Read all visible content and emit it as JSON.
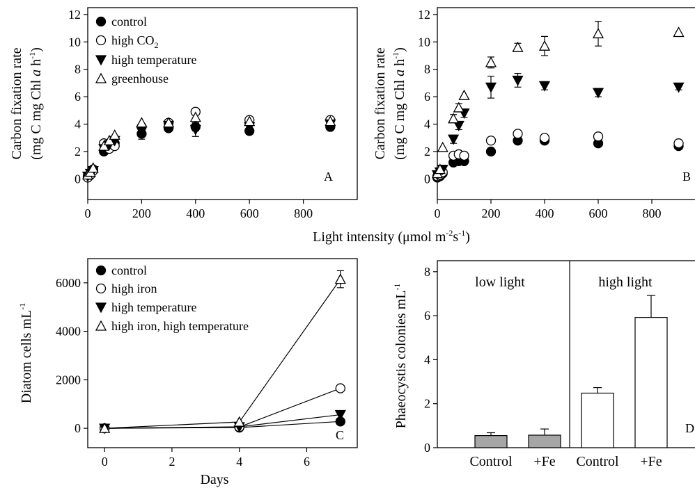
{
  "shared": {
    "xlabel_main": "Light intensity (μmol m",
    "xlabel_sup1": "-2",
    "xlabel_mid": "s",
    "xlabel_sup2": "-1",
    "xlabel_end": ")",
    "ylabel_line1": "Carbon fixation rate",
    "ylabel_line2_pre": "(mg C mg Chl ",
    "ylabel_line2_ital": "a",
    "ylabel_line2_post": "  h",
    "ylabel_line2_sup": "-1",
    "ylabel_line2_close": ")",
    "legend_co2_pre": "high CO",
    "legend_co2_sub": "2"
  },
  "chart_data": [
    {
      "id": "A",
      "type": "scatter",
      "panel_letter": "A",
      "xlim": [
        0,
        1000
      ],
      "ylim": [
        -1.5,
        12.5
      ],
      "xticks": [
        "0",
        "200",
        "400",
        "600",
        "800"
      ],
      "yticks": [
        "0",
        "2",
        "4",
        "6",
        "8",
        "10",
        "12"
      ],
      "legend_placement": "top-left",
      "legend": [
        "control",
        "high CO2",
        "high temperature",
        "greenhouse"
      ],
      "series": [
        {
          "name": "control",
          "marker": "filled-circle",
          "x": [
            0,
            10,
            20,
            60,
            80,
            100,
            200,
            300,
            400,
            600,
            900
          ],
          "y": [
            0.2,
            0.4,
            0.7,
            2.0,
            2.3,
            2.6,
            3.3,
            3.7,
            3.8,
            3.5,
            3.8
          ],
          "err": [
            0,
            0,
            0,
            0,
            0,
            0,
            0.4,
            0.2,
            0.3,
            0.1,
            0.1
          ]
        },
        {
          "name": "high CO2",
          "marker": "open-circle",
          "x": [
            0,
            10,
            20,
            60,
            80,
            100,
            200,
            300,
            400,
            600,
            900
          ],
          "y": [
            0.1,
            0.3,
            0.6,
            2.6,
            2.2,
            2.4,
            3.8,
            4.1,
            4.9,
            4.3,
            4.3
          ],
          "err": [
            0,
            0,
            0,
            0,
            0,
            0,
            0,
            0,
            0,
            0,
            0
          ]
        },
        {
          "name": "high temperature",
          "marker": "filled-triangle-down",
          "x": [
            0,
            10,
            20,
            60,
            80,
            100,
            200,
            300,
            400,
            600,
            900
          ],
          "y": [
            0.2,
            0.4,
            0.6,
            2.2,
            2.5,
            2.8,
            3.5,
            3.9,
            3.6,
            3.8,
            4.0
          ],
          "err": [
            0,
            0,
            0,
            0,
            0,
            0,
            0,
            0,
            0.5,
            0,
            0
          ]
        },
        {
          "name": "greenhouse",
          "marker": "open-triangle-up",
          "x": [
            0,
            10,
            20,
            60,
            80,
            100,
            200,
            300,
            400,
            600,
            900
          ],
          "y": [
            0.3,
            0.5,
            0.8,
            2.4,
            2.8,
            3.2,
            4.1,
            4.1,
            4.5,
            4.2,
            4.2
          ],
          "err": [
            0,
            0,
            0,
            0,
            0,
            0,
            0,
            0,
            0,
            0,
            0
          ]
        }
      ]
    },
    {
      "id": "B",
      "type": "scatter",
      "panel_letter": "B",
      "xlim": [
        0,
        1000
      ],
      "ylim": [
        -1.5,
        12.5
      ],
      "xticks": [
        "0",
        "200",
        "400",
        "600",
        "800"
      ],
      "yticks": [
        "0",
        "2",
        "4",
        "6",
        "8",
        "10",
        "12"
      ],
      "series": [
        {
          "name": "control",
          "marker": "filled-circle",
          "x": [
            0,
            10,
            20,
            60,
            80,
            100,
            200,
            300,
            400,
            600,
            900
          ],
          "y": [
            0.1,
            0.2,
            0.4,
            1.2,
            1.3,
            1.3,
            2.0,
            2.8,
            2.8,
            2.6,
            2.4
          ],
          "err": [
            0,
            0,
            0,
            0,
            0,
            0,
            0,
            0,
            0,
            0,
            0
          ]
        },
        {
          "name": "high CO2",
          "marker": "open-circle",
          "x": [
            0,
            10,
            20,
            60,
            80,
            100,
            200,
            300,
            400,
            600,
            900
          ],
          "y": [
            0.2,
            0.3,
            0.5,
            1.7,
            1.8,
            1.7,
            2.8,
            3.3,
            3.0,
            3.1,
            2.6
          ],
          "err": [
            0,
            0,
            0,
            0,
            0,
            0,
            0,
            0,
            0,
            0,
            0
          ]
        },
        {
          "name": "high temperature",
          "marker": "filled-triangle-down",
          "x": [
            0,
            10,
            20,
            60,
            80,
            100,
            200,
            300,
            400,
            600,
            900
          ],
          "y": [
            0.3,
            0.5,
            0.7,
            2.9,
            3.9,
            4.8,
            6.7,
            7.2,
            6.8,
            6.3,
            6.7
          ],
          "err": [
            0,
            0,
            0,
            0.3,
            0.3,
            0.3,
            0.8,
            0.5,
            0.3,
            0.3,
            0.2
          ]
        },
        {
          "name": "greenhouse",
          "marker": "open-triangle-up",
          "x": [
            0,
            10,
            20,
            60,
            80,
            100,
            200,
            300,
            400,
            600,
            900
          ],
          "y": [
            0.4,
            0.7,
            2.3,
            4.4,
            5.2,
            6.1,
            8.5,
            9.6,
            9.7,
            10.6,
            10.7
          ],
          "err": [
            0,
            0,
            0,
            0.3,
            0.3,
            0,
            0.4,
            0.3,
            0.7,
            0.9,
            0
          ]
        }
      ]
    },
    {
      "id": "C",
      "type": "line",
      "panel_letter": "C",
      "xlabel": "Days",
      "ylabel": "Diatom cells mL",
      "ylabel_sup": "-1",
      "xlim": [
        -0.5,
        7.5
      ],
      "ylim": [
        -800,
        7000
      ],
      "xticks": [
        "0",
        "2",
        "4",
        "6"
      ],
      "yticks": [
        "0",
        "2000",
        "4000",
        "6000"
      ],
      "legend_placement": "top-left",
      "legend": [
        "control",
        "high iron",
        "high temperature",
        "high iron, high temperature"
      ],
      "series": [
        {
          "name": "control",
          "marker": "filled-circle",
          "x": [
            0,
            4,
            7
          ],
          "y": [
            0,
            30,
            280
          ],
          "err": [
            0,
            0,
            0
          ]
        },
        {
          "name": "high iron",
          "marker": "open-circle",
          "x": [
            0,
            4,
            7
          ],
          "y": [
            0,
            50,
            1650
          ],
          "err": [
            0,
            0,
            0
          ]
        },
        {
          "name": "high temperature",
          "marker": "filled-triangle-down",
          "x": [
            0,
            4,
            7
          ],
          "y": [
            0,
            60,
            560
          ],
          "err": [
            0,
            0,
            0
          ]
        },
        {
          "name": "high iron, high temperature",
          "marker": "open-triangle-up",
          "x": [
            0,
            4,
            7
          ],
          "y": [
            0,
            260,
            6150
          ],
          "err": [
            0,
            0,
            350
          ]
        }
      ]
    },
    {
      "id": "D",
      "type": "bar",
      "panel_letter": "D",
      "ylabel": "Phaeocystis colonies mL",
      "ylabel_sup": "-1",
      "ylim": [
        0,
        8.5
      ],
      "yticks": [
        "0",
        "2",
        "4",
        "6",
        "8"
      ],
      "categories": [
        "Control",
        "+Fe",
        "Control",
        "+Fe"
      ],
      "groups": [
        "low light",
        "high light"
      ],
      "values": [
        0.55,
        0.57,
        2.48,
        5.92
      ],
      "err": [
        0.13,
        0.28,
        0.25,
        1.0
      ],
      "bar_colors": [
        "#a6a6a6",
        "#a6a6a6",
        "#ffffff",
        "#ffffff"
      ]
    }
  ]
}
